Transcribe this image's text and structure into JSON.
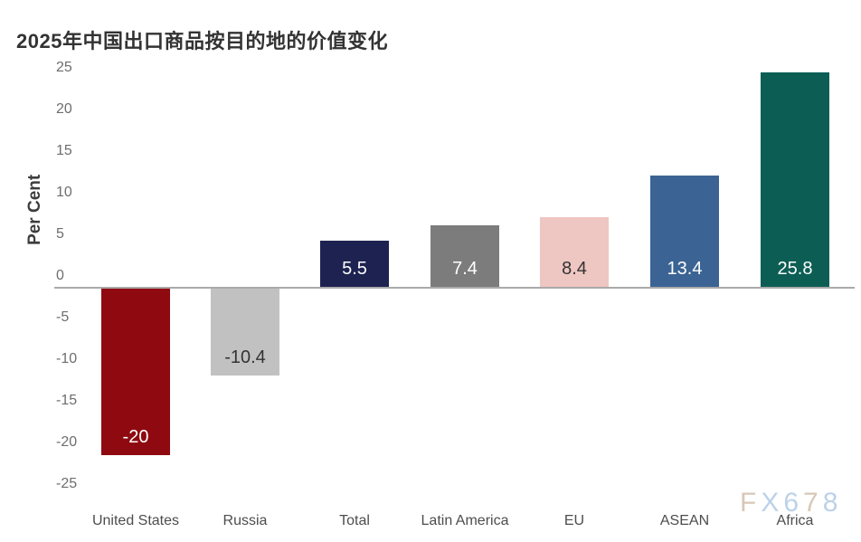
{
  "title": "2025年中国出口商品按目的地的价值变化",
  "watermark": {
    "text": "FX678",
    "letter_colors": [
      "#d8c7b7",
      "#bcd2e9",
      "#bcd2e9",
      "#d8c7b7",
      "#bcd2e9"
    ]
  },
  "chart_data": {
    "type": "bar",
    "title": "2025年中国出口商品按目的地的价值变化",
    "categories": [
      "United States",
      "Russia",
      "Total",
      "Latin America",
      "EU",
      "ASEAN",
      "Africa"
    ],
    "values": [
      -20,
      -10.4,
      5.5,
      7.4,
      8.4,
      13.4,
      25.8
    ],
    "value_labels": [
      "-20",
      "-10.4",
      "5.5",
      "7.4",
      "8.4",
      "13.4",
      "25.8"
    ],
    "bar_colors": [
      "#8e0a10",
      "#c1c1c1",
      "#1d2251",
      "#7c7c7c",
      "#eec6c2",
      "#3b6494",
      "#0c5e54"
    ],
    "value_label_colors": [
      "#ffffff",
      "#333333",
      "#ffffff",
      "#ffffff",
      "#333333",
      "#ffffff",
      "#ffffff"
    ],
    "xlabel": "",
    "ylabel": "Per Cent",
    "yticks": [
      25,
      20,
      15,
      10,
      5,
      0,
      -5,
      -10,
      -15,
      -20,
      -25
    ],
    "ylim": [
      -25,
      25
    ],
    "grid": false,
    "legend": "none",
    "baseline_color": "#aaaaaa",
    "tick_label_color": "#6e6e6e",
    "category_label_color": "#4d4d4d"
  }
}
